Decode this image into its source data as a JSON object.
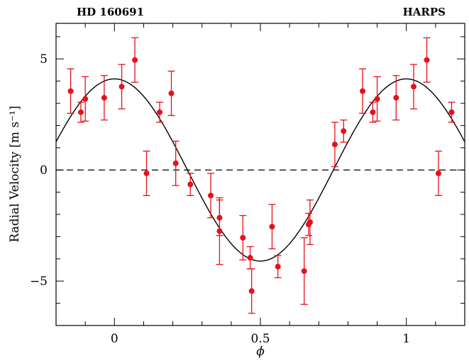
{
  "chart_data": {
    "type": "scatter",
    "title_left": "HD 160691",
    "title_right": "HARPS",
    "xlabel": "ϕ",
    "ylabel": "Radial Velocity [m s⁻¹]",
    "xlim": [
      -0.2,
      1.2
    ],
    "ylim": [
      -7,
      6.6
    ],
    "x_ticks": [
      0,
      0.5,
      1
    ],
    "x_tick_labels": [
      "0",
      "0.5",
      "1"
    ],
    "y_ticks": [
      -5,
      0,
      5
    ],
    "y_tick_labels": [
      "−5",
      "0",
      "5"
    ],
    "zero_line": "dashed",
    "model": {
      "type": "sine",
      "amplitude": 4.1,
      "phase_of_max": 0.0
    },
    "points": [
      {
        "x": -0.15,
        "y": 3.55,
        "err": 1.0
      },
      {
        "x": -0.115,
        "y": 2.6,
        "err": 0.45
      },
      {
        "x": -0.1,
        "y": 3.2,
        "err": 1.0
      },
      {
        "x": -0.035,
        "y": 3.25,
        "err": 1.0
      },
      {
        "x": 0.025,
        "y": 3.75,
        "err": 1.0
      },
      {
        "x": 0.07,
        "y": 4.95,
        "err": 1.0
      },
      {
        "x": 0.11,
        "y": -0.15,
        "err": 1.0
      },
      {
        "x": 0.155,
        "y": 2.6,
        "err": 0.45
      },
      {
        "x": 0.195,
        "y": 3.45,
        "err": 1.0
      },
      {
        "x": 0.21,
        "y": 0.3,
        "err": 1.0
      },
      {
        "x": 0.26,
        "y": -0.65,
        "err": 0.5
      },
      {
        "x": 0.33,
        "y": -1.15,
        "err": 1.0
      },
      {
        "x": 0.36,
        "y": -2.15,
        "err": 0.8
      },
      {
        "x": 0.36,
        "y": -2.75,
        "err": 1.5
      },
      {
        "x": 0.44,
        "y": -3.05,
        "err": 1.0
      },
      {
        "x": 0.465,
        "y": -3.95,
        "err": 0.5
      },
      {
        "x": 0.47,
        "y": -5.45,
        "err": 1.0
      },
      {
        "x": 0.54,
        "y": -2.55,
        "err": 1.0
      },
      {
        "x": 0.56,
        "y": -4.35,
        "err": 0.5
      },
      {
        "x": 0.65,
        "y": -4.55,
        "err": 1.5
      },
      {
        "x": 0.665,
        "y": -2.45,
        "err": 0.5
      },
      {
        "x": 0.67,
        "y": -2.35,
        "err": 1.0
      },
      {
        "x": 0.755,
        "y": 1.15,
        "err": 1.0
      },
      {
        "x": 0.785,
        "y": 1.75,
        "err": 0.5
      },
      {
        "x": 0.85,
        "y": 3.55,
        "err": 1.0
      },
      {
        "x": 0.885,
        "y": 2.6,
        "err": 0.45
      },
      {
        "x": 0.9,
        "y": 3.2,
        "err": 1.0
      },
      {
        "x": 0.965,
        "y": 3.25,
        "err": 1.0
      },
      {
        "x": 1.025,
        "y": 3.75,
        "err": 1.0
      },
      {
        "x": 1.07,
        "y": 4.95,
        "err": 1.0
      },
      {
        "x": 1.11,
        "y": -0.15,
        "err": 1.0
      },
      {
        "x": 1.155,
        "y": 2.6,
        "err": 0.45
      }
    ],
    "point_color": "#e8101a",
    "curve_color": "#000000",
    "grid": false
  }
}
